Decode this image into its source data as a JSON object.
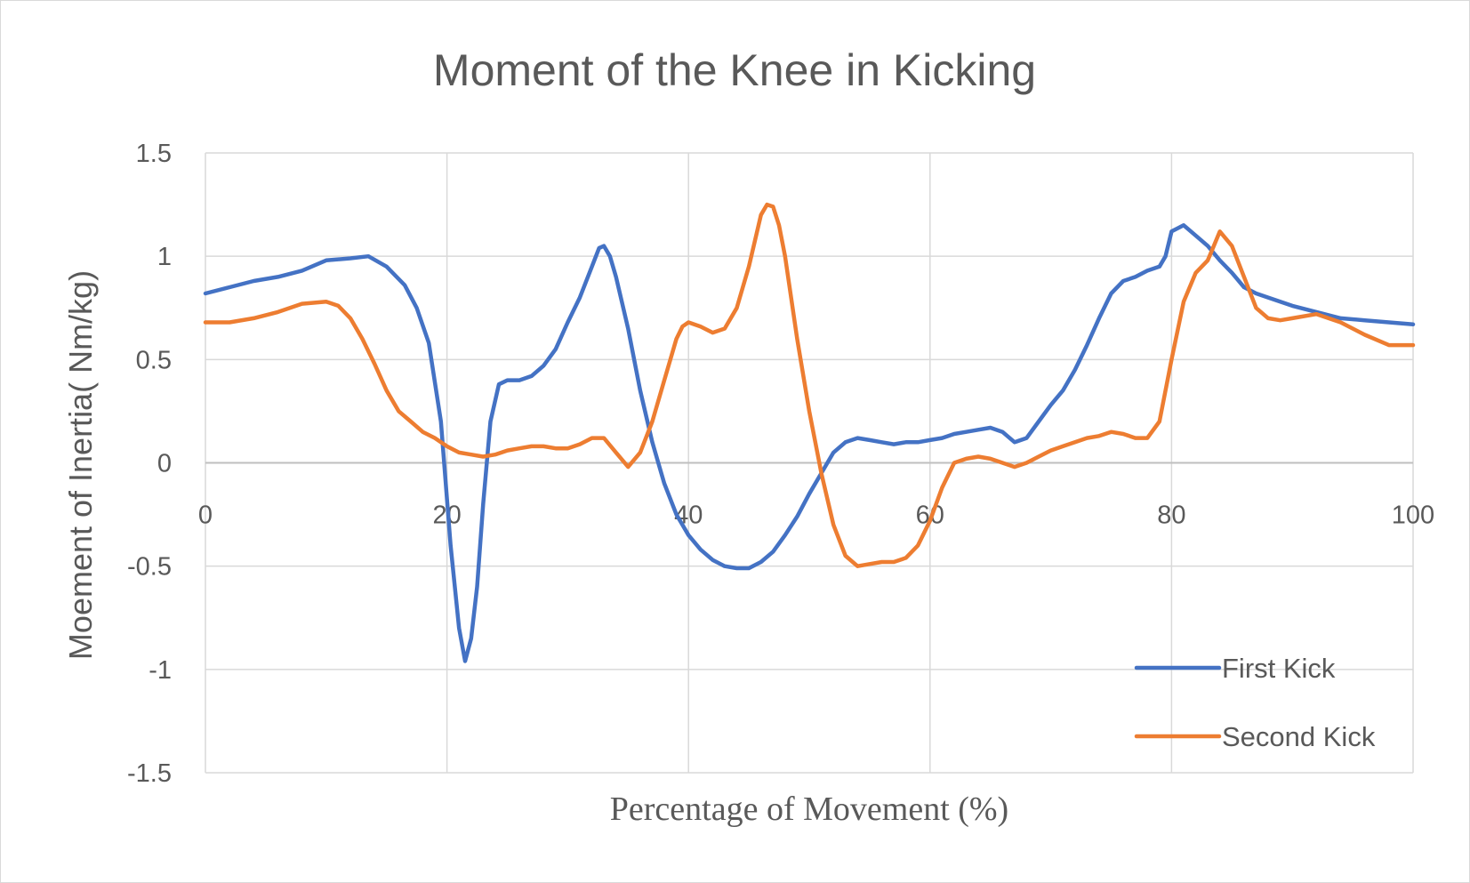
{
  "chart_data": {
    "type": "line",
    "title": "Moment of the Knee in Kicking",
    "xlabel": "Percentage of Movement (%)",
    "ylabel": "Moement of Inertia( Nm/kg)",
    "xlim": [
      0,
      100
    ],
    "ylim": [
      -1.5,
      1.5
    ],
    "x_ticks": [
      0,
      20,
      40,
      60,
      80,
      100
    ],
    "x_tick_labels": [
      "0",
      "20",
      "40",
      "60",
      "80",
      "100"
    ],
    "y_ticks": [
      -1.5,
      -1,
      -0.5,
      0,
      0.5,
      1,
      1.5
    ],
    "y_tick_labels": [
      "-1.5",
      "-1",
      "-0.5",
      "0",
      "0.5",
      "1",
      "1.5"
    ],
    "grid": true,
    "legend_position": "bottom-right",
    "series": [
      {
        "name": "First Kick",
        "color": "#4472c4",
        "x": [
          0,
          2,
          4,
          6,
          8,
          10,
          12,
          13.5,
          15,
          16.5,
          17.5,
          18.5,
          19.5,
          20.3,
          21,
          21.5,
          22,
          22.5,
          23,
          23.6,
          24.3,
          25,
          26,
          27,
          28,
          29,
          30,
          31,
          32,
          32.6,
          33,
          33.5,
          34,
          35,
          36,
          37,
          38,
          39,
          40,
          41,
          42,
          43,
          44,
          45,
          46,
          47,
          48,
          49,
          50,
          51,
          52,
          53,
          54,
          55,
          56,
          57,
          58,
          59,
          60,
          61,
          62,
          63,
          64,
          65,
          66,
          67,
          68,
          69,
          70,
          71,
          72,
          73,
          74,
          75,
          76,
          77,
          78,
          79,
          79.5,
          80,
          81,
          82,
          83,
          84,
          85,
          86,
          87,
          88,
          89,
          90,
          92,
          94,
          96,
          98,
          100
        ],
        "y": [
          0.82,
          0.85,
          0.88,
          0.9,
          0.93,
          0.98,
          0.99,
          1.0,
          0.95,
          0.86,
          0.75,
          0.58,
          0.2,
          -0.4,
          -0.8,
          -0.96,
          -0.85,
          -0.6,
          -0.2,
          0.2,
          0.38,
          0.4,
          0.4,
          0.42,
          0.47,
          0.55,
          0.68,
          0.8,
          0.95,
          1.04,
          1.05,
          1.0,
          0.9,
          0.65,
          0.35,
          0.1,
          -0.1,
          -0.25,
          -0.35,
          -0.42,
          -0.47,
          -0.5,
          -0.51,
          -0.51,
          -0.48,
          -0.43,
          -0.35,
          -0.26,
          -0.15,
          -0.05,
          0.05,
          0.1,
          0.12,
          0.11,
          0.1,
          0.09,
          0.1,
          0.1,
          0.11,
          0.12,
          0.14,
          0.15,
          0.16,
          0.17,
          0.15,
          0.1,
          0.12,
          0.2,
          0.28,
          0.35,
          0.45,
          0.57,
          0.7,
          0.82,
          0.88,
          0.9,
          0.93,
          0.95,
          1.0,
          1.12,
          1.15,
          1.1,
          1.05,
          0.98,
          0.92,
          0.85,
          0.82,
          0.8,
          0.78,
          0.76,
          0.73,
          0.7,
          0.69,
          0.68,
          0.67
        ]
      },
      {
        "name": "Second Kick",
        "color": "#ed7d31",
        "x": [
          0,
          2,
          4,
          6,
          8,
          10,
          11,
          12,
          13,
          14,
          15,
          16,
          17,
          18,
          19,
          20,
          21,
          22,
          23,
          24,
          25,
          26,
          27,
          28,
          29,
          30,
          31,
          32,
          33,
          34,
          35,
          36,
          37,
          38,
          39,
          39.5,
          40,
          41,
          42,
          43,
          44,
          45,
          46,
          46.5,
          47,
          47.5,
          48,
          49,
          50,
          51,
          52,
          53,
          54,
          55,
          56,
          57,
          58,
          59,
          60,
          61,
          62,
          63,
          64,
          65,
          66,
          67,
          68,
          69,
          70,
          71,
          72,
          73,
          74,
          75,
          76,
          77,
          78,
          79,
          80,
          81,
          82,
          83,
          83.5,
          84,
          85,
          86,
          87,
          88,
          89,
          90,
          92,
          94,
          96,
          98,
          100
        ],
        "y": [
          0.68,
          0.68,
          0.7,
          0.73,
          0.77,
          0.78,
          0.76,
          0.7,
          0.6,
          0.48,
          0.35,
          0.25,
          0.2,
          0.15,
          0.12,
          0.08,
          0.05,
          0.04,
          0.03,
          0.04,
          0.06,
          0.07,
          0.08,
          0.08,
          0.07,
          0.07,
          0.09,
          0.12,
          0.12,
          0.05,
          -0.02,
          0.05,
          0.2,
          0.4,
          0.6,
          0.66,
          0.68,
          0.66,
          0.63,
          0.65,
          0.75,
          0.95,
          1.2,
          1.25,
          1.24,
          1.15,
          1.0,
          0.6,
          0.25,
          -0.05,
          -0.3,
          -0.45,
          -0.5,
          -0.49,
          -0.48,
          -0.48,
          -0.46,
          -0.4,
          -0.28,
          -0.12,
          0.0,
          0.02,
          0.03,
          0.02,
          0.0,
          -0.02,
          0.0,
          0.03,
          0.06,
          0.08,
          0.1,
          0.12,
          0.13,
          0.15,
          0.14,
          0.12,
          0.12,
          0.2,
          0.5,
          0.78,
          0.92,
          0.98,
          1.05,
          1.12,
          1.05,
          0.9,
          0.75,
          0.7,
          0.69,
          0.7,
          0.72,
          0.68,
          0.62,
          0.57,
          0.57
        ]
      }
    ]
  }
}
